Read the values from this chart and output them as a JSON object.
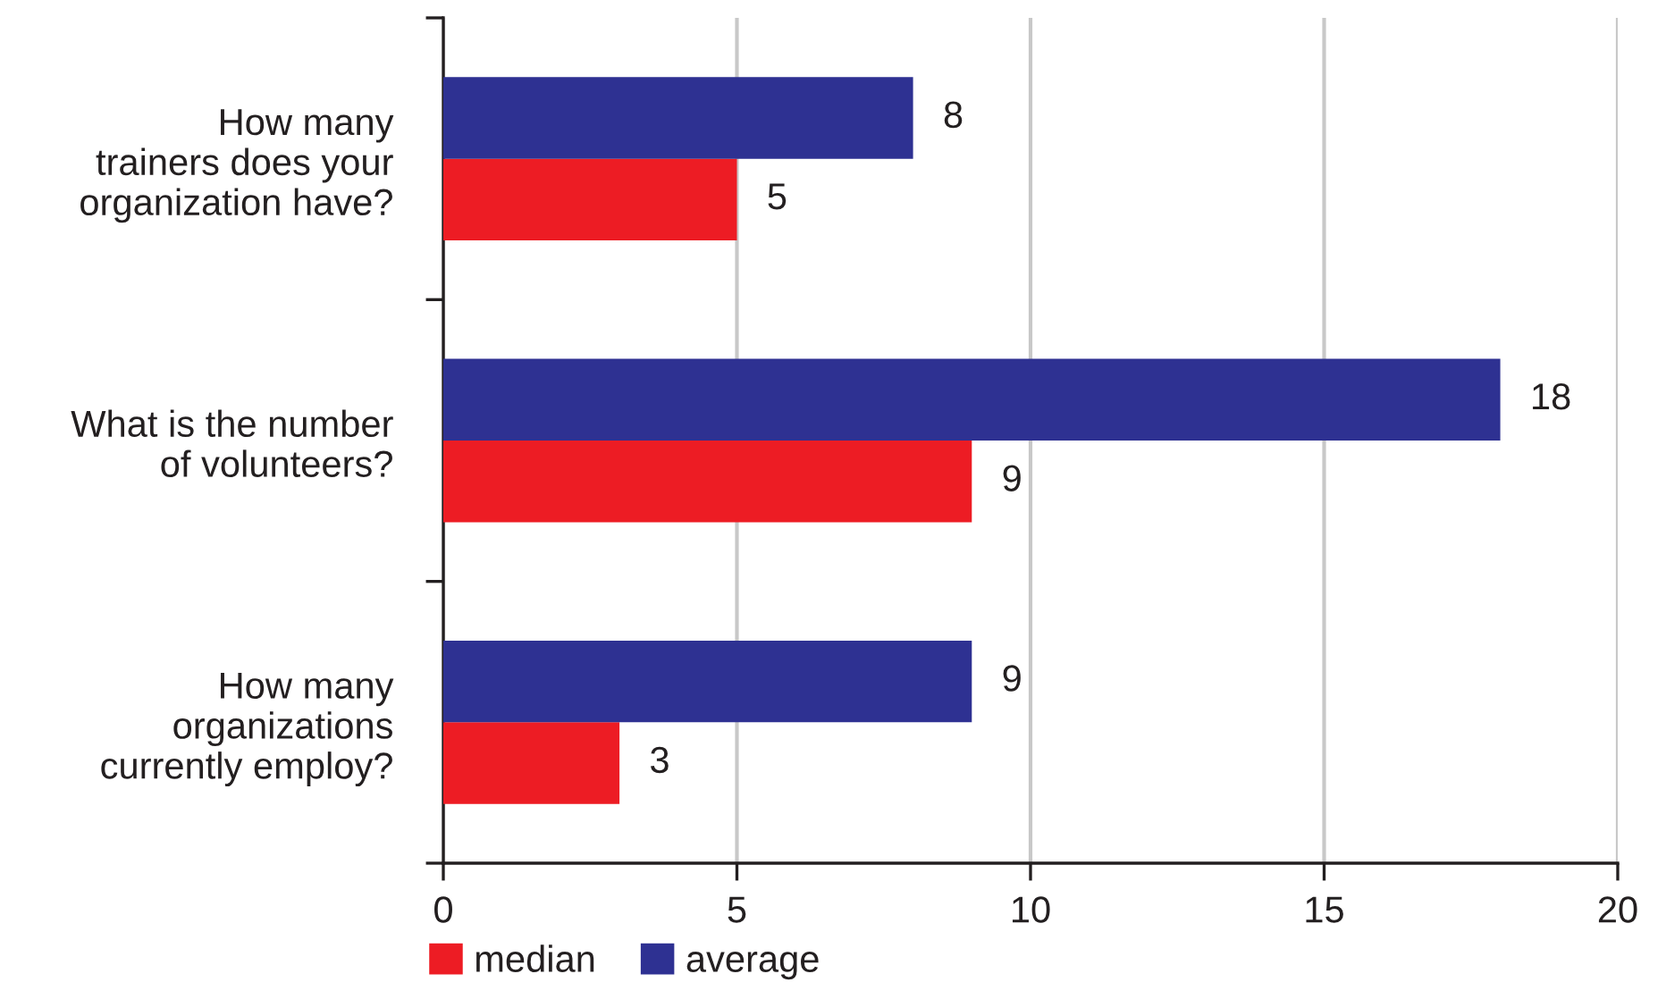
{
  "chart_data": {
    "type": "bar",
    "orientation": "horizontal",
    "categories": [
      "How many\ntrainers does your\norganization have?",
      "What is the number\nof volunteers?",
      "How many\norganizations\ncurrently employ?"
    ],
    "series": [
      {
        "name": "median",
        "color": "#ed1c24",
        "values": [
          5,
          9,
          3
        ]
      },
      {
        "name": "average",
        "color": "#2e3192",
        "values": [
          8,
          18,
          9
        ]
      }
    ],
    "xlim": [
      0,
      20
    ],
    "xticks": [
      0,
      5,
      10,
      15,
      20
    ],
    "grid": "x",
    "legend": "bottom",
    "data_labels": true
  }
}
